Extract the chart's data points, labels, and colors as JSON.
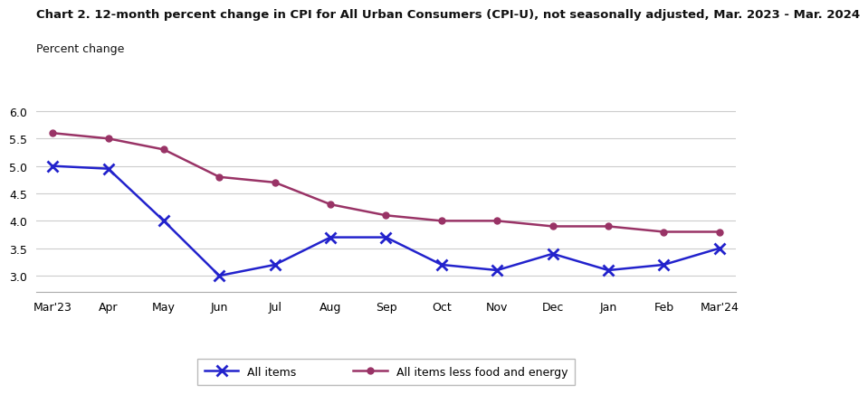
{
  "title": "Chart 2. 12-month percent change in CPI for All Urban Consumers (CPI-U), not seasonally adjusted, Mar. 2023 - Mar. 2024",
  "ylabel": "Percent change",
  "x_labels": [
    "Mar'23",
    "Apr",
    "May",
    "Jun",
    "Jul",
    "Aug",
    "Sep",
    "Oct",
    "Nov",
    "Dec",
    "Jan",
    "Feb",
    "Mar'24"
  ],
  "all_items": [
    5.0,
    4.95,
    4.0,
    3.0,
    3.2,
    3.7,
    3.7,
    3.2,
    3.1,
    3.4,
    3.1,
    3.2,
    3.5
  ],
  "core_items": [
    5.6,
    5.5,
    5.3,
    4.8,
    4.7,
    4.3,
    4.1,
    4.0,
    4.0,
    3.9,
    3.9,
    3.8,
    3.8
  ],
  "ylim": [
    2.7,
    6.15
  ],
  "yticks": [
    3.0,
    3.5,
    4.0,
    4.5,
    5.0,
    5.5,
    6.0
  ],
  "all_items_color": "#2222cc",
  "core_items_color": "#993366",
  "background_color": "#ffffff",
  "grid_color": "#cccccc",
  "title_fontsize": 9.5,
  "label_fontsize": 9,
  "tick_fontsize": 9,
  "legend_label_all": "All items",
  "legend_label_core": "All items less food and energy"
}
